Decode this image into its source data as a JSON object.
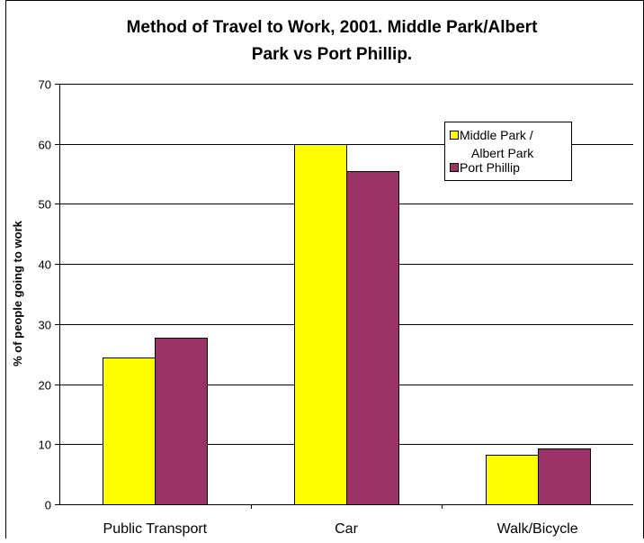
{
  "chart_data": {
    "type": "bar",
    "title_lines": [
      "Method of Travel to Work, 2001. Middle Park/Albert",
      "Park vs Port Phillip."
    ],
    "xlabel": "",
    "ylabel": "% of people going to work",
    "categories": [
      "Public Transport",
      "Car",
      "Walk/Bicycle"
    ],
    "ylim": [
      0,
      70
    ],
    "yticks": [
      0,
      10,
      20,
      30,
      40,
      50,
      60,
      70
    ],
    "grid": true,
    "legend_position": "top-right",
    "series": [
      {
        "name_lines": [
          "Middle Park /",
          "Albert Park"
        ],
        "color": "#ffff00",
        "values": [
          24.5,
          60.0,
          8.3
        ]
      },
      {
        "name_lines": [
          "Port Phillip"
        ],
        "color": "#993366",
        "values": [
          27.7,
          55.4,
          9.3
        ]
      }
    ]
  }
}
